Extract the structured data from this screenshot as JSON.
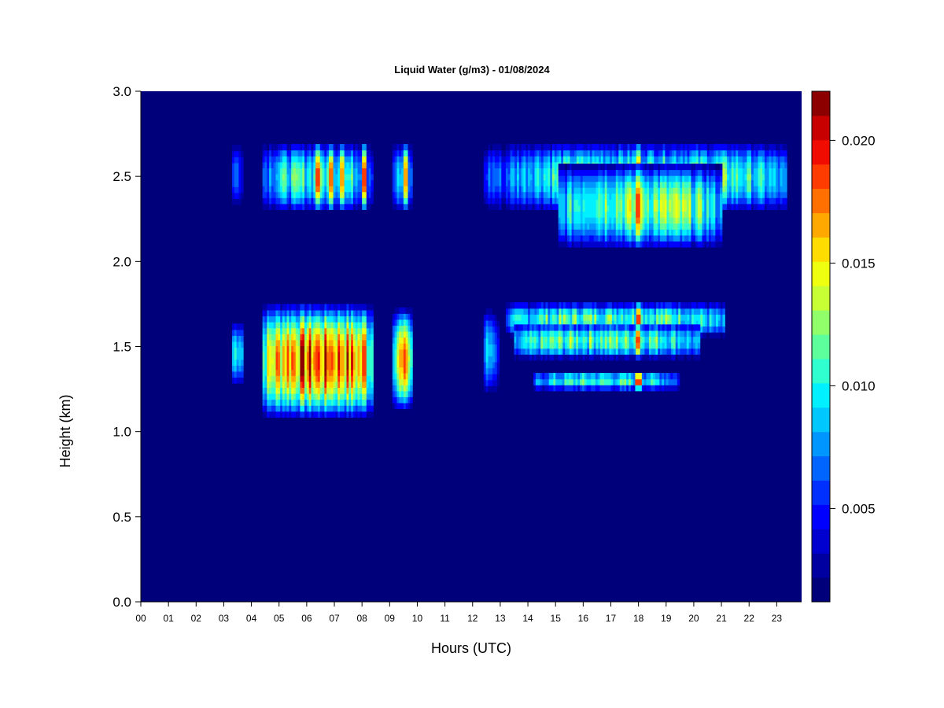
{
  "chart_data": {
    "type": "heatmap",
    "title": "Liquid Water (g/m3) - 01/08/2024",
    "xlabel": "Hours (UTC)",
    "ylabel": "Height (km)",
    "xlim": [
      0,
      23.9
    ],
    "ylim": [
      0,
      3.0
    ],
    "x_ticks": [
      "00",
      "01",
      "02",
      "03",
      "04",
      "05",
      "06",
      "07",
      "08",
      "09",
      "10",
      "11",
      "12",
      "13",
      "14",
      "15",
      "16",
      "17",
      "18",
      "19",
      "20",
      "21",
      "22",
      "23"
    ],
    "y_ticks": [
      "0.0",
      "0.5",
      "1.0",
      "1.5",
      "2.0",
      "2.5",
      "3.0"
    ],
    "colorbar": {
      "min": 0.0012,
      "max": 0.022,
      "ticks": [
        "0.005",
        "0.010",
        "0.015",
        "0.020"
      ],
      "levels": [
        "#00007a",
        "#0000a0",
        "#0000cf",
        "#0000ff",
        "#0030ff",
        "#0064ff",
        "#0096ff",
        "#00c8ff",
        "#00f0ff",
        "#30ffd0",
        "#5cff9c",
        "#90ff6a",
        "#c8ff34",
        "#eeff10",
        "#ffdc00",
        "#ffa800",
        "#ff7000",
        "#ff3c00",
        "#f00c00",
        "#c80000",
        "#8c0000"
      ]
    },
    "background_color": "#00007a",
    "cloud_layers": [
      {
        "x_start": 3.3,
        "x_end": 3.7,
        "y_bottom": 1.25,
        "y_top": 1.67,
        "peak_value": 0.011
      },
      {
        "x_start": 4.4,
        "x_end": 8.4,
        "y_bottom": 1.05,
        "y_top": 1.78,
        "peak_value": 0.019
      },
      {
        "x_start": 9.1,
        "x_end": 9.8,
        "y_bottom": 1.1,
        "y_top": 1.75,
        "peak_value": 0.016
      },
      {
        "x_start": 12.4,
        "x_end": 12.9,
        "y_bottom": 1.2,
        "y_top": 1.75,
        "peak_value": 0.009
      },
      {
        "x_start": 13.2,
        "x_end": 21.1,
        "y_bottom": 1.55,
        "y_top": 1.77,
        "peak_value": 0.012
      },
      {
        "x_start": 13.5,
        "x_end": 20.2,
        "y_bottom": 1.42,
        "y_top": 1.65,
        "peak_value": 0.012
      },
      {
        "x_start": 14.2,
        "x_end": 19.4,
        "y_bottom": 1.24,
        "y_top": 1.36,
        "peak_value": 0.011
      },
      {
        "x_start": 3.3,
        "x_end": 3.7,
        "y_bottom": 2.3,
        "y_top": 2.72,
        "peak_value": 0.007
      },
      {
        "x_start": 4.4,
        "x_end": 8.4,
        "y_bottom": 2.27,
        "y_top": 2.72,
        "peak_value": 0.011
      },
      {
        "x_start": 9.1,
        "x_end": 9.8,
        "y_bottom": 2.27,
        "y_top": 2.72,
        "peak_value": 0.009
      },
      {
        "x_start": 12.4,
        "x_end": 13.2,
        "y_bottom": 2.27,
        "y_top": 2.72,
        "peak_value": 0.007
      },
      {
        "x_start": 13.2,
        "x_end": 23.3,
        "y_bottom": 2.27,
        "y_top": 2.72,
        "peak_value": 0.012
      },
      {
        "x_start": 15.1,
        "x_end": 21.0,
        "y_bottom": 2.05,
        "y_top": 2.6,
        "peak_value": 0.013
      }
    ],
    "peak_columns": [
      {
        "x": 6.4,
        "value": 0.019
      },
      {
        "x": 6.9,
        "value": 0.018
      },
      {
        "x": 7.3,
        "value": 0.017
      },
      {
        "x": 8.1,
        "value": 0.019
      },
      {
        "x": 9.6,
        "value": 0.017
      },
      {
        "x": 18.0,
        "value": 0.019
      }
    ]
  }
}
